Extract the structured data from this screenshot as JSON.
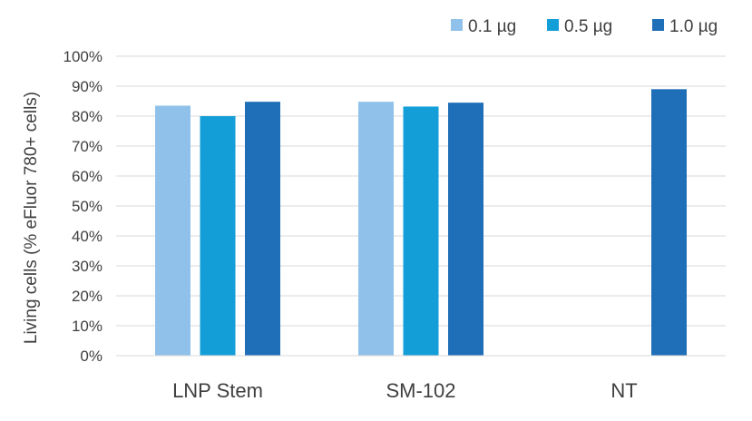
{
  "chart_data": {
    "type": "bar",
    "title": "",
    "xlabel": "",
    "ylabel": "Living cells (% eFluor 780+ cells)",
    "ylim": [
      0,
      100
    ],
    "yticks": [
      "0%",
      "10%",
      "20%",
      "30%",
      "40%",
      "50%",
      "60%",
      "70%",
      "80%",
      "90%",
      "100%"
    ],
    "grid": true,
    "legend_position": "top-right",
    "categories": [
      "LNP Stem",
      "SM-102",
      "NT"
    ],
    "series": [
      {
        "name": "0.1 µg",
        "color": "#8fc1ea",
        "values": [
          83.5,
          84.8,
          null
        ]
      },
      {
        "name": "0.5 µg",
        "color": "#139ed8",
        "values": [
          80,
          83.2,
          null
        ]
      },
      {
        "name": "1.0 µg",
        "color": "#1f6eb8",
        "values": [
          84.8,
          84.5,
          89
        ]
      }
    ]
  }
}
